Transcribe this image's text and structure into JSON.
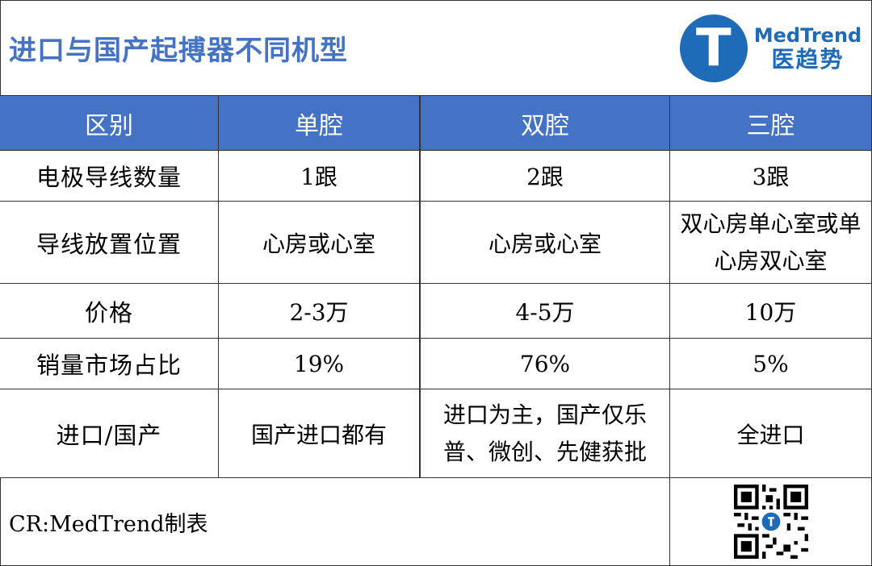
{
  "title": "进口与国产起搏器不同机型",
  "logo": {
    "en": "MedTrend",
    "cn": "医趋势",
    "mark": "T"
  },
  "header": [
    "区别",
    "单腔",
    "双腔",
    "三腔"
  ],
  "rows": [
    {
      "label": "电极导线数量",
      "values": [
        "1跟",
        "2跟",
        "3跟"
      ]
    },
    {
      "label": "导线放置位置",
      "values": [
        "心房或心室",
        "心房或心室",
        "双心房单心室或单心房双心室"
      ]
    },
    {
      "label": "价格",
      "values": [
        "2-3万",
        "4-5万",
        "10万"
      ]
    },
    {
      "label": "销量市场占比",
      "values": [
        "19%",
        "76%",
        "5%"
      ]
    },
    {
      "label": "进口/国产",
      "values": [
        "国产进口都有",
        "进口为主，国产仅乐普、微创、先健获批",
        "全进口"
      ]
    }
  ],
  "footer": {
    "credit": "CR:MedTrend制表",
    "qr_icon": "qr-code-icon"
  },
  "colors": {
    "title": "#4472c4",
    "header_bg": "#4472c4",
    "logo": "#1e6bb8"
  }
}
